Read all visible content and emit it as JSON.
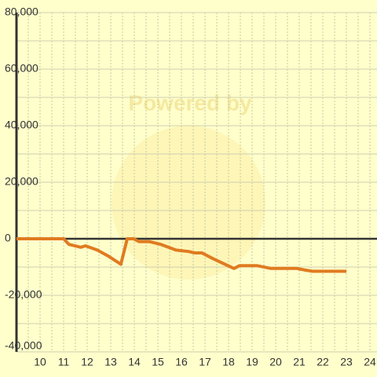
{
  "chart_data": {
    "type": "line",
    "watermark": "Powered by",
    "x": [
      9,
      11,
      11.23,
      11.73,
      11.93,
      12.43,
      12.87,
      13.43,
      13.7,
      13.97,
      14.2,
      14.63,
      15.13,
      15.77,
      16.3,
      16.57,
      16.87,
      17.33,
      17.97,
      18.23,
      18.47,
      19.2,
      19.8,
      20.9,
      21.2,
      21.57,
      23
    ],
    "series": [
      {
        "color": "#e07b20",
        "values": [
          0,
          0,
          -2000,
          -3000,
          -2500,
          -4000,
          -6000,
          -9000,
          0,
          0,
          -1000,
          -1000,
          -2000,
          -4000,
          -4500,
          -5000,
          -5000,
          -7000,
          -9500,
          -10500,
          -9500,
          -9500,
          -10500,
          -10500,
          -11000,
          -11500,
          -11500
        ]
      }
    ],
    "xlim": [
      9,
      24.3
    ],
    "ylim": [
      -40000,
      80000
    ],
    "xticks": [
      10,
      11,
      12,
      13,
      14,
      15,
      16,
      17,
      18,
      19,
      20,
      21,
      22,
      23,
      24
    ],
    "yticks": [
      {
        "value": -40000,
        "label": "-40,000"
      },
      {
        "value": -20000,
        "label": "-20,000"
      },
      0,
      {
        "value": 20000,
        "label": "20,000"
      },
      {
        "value": 40000,
        "label": "40,000"
      },
      {
        "value": 60000,
        "label": "60,000"
      },
      {
        "value": 80000,
        "label": "80,000"
      }
    ],
    "y_minor_ticks": [
      -30000,
      -10000,
      10000,
      30000,
      50000,
      70000
    ],
    "x_minor_ticks": [
      9.5,
      10.5,
      11.5,
      12.5,
      13.5,
      14.5,
      15.5,
      16.5,
      17.5,
      18.5,
      19.5,
      20.5,
      21.5,
      22.5,
      23.5
    ],
    "grid": true
  }
}
